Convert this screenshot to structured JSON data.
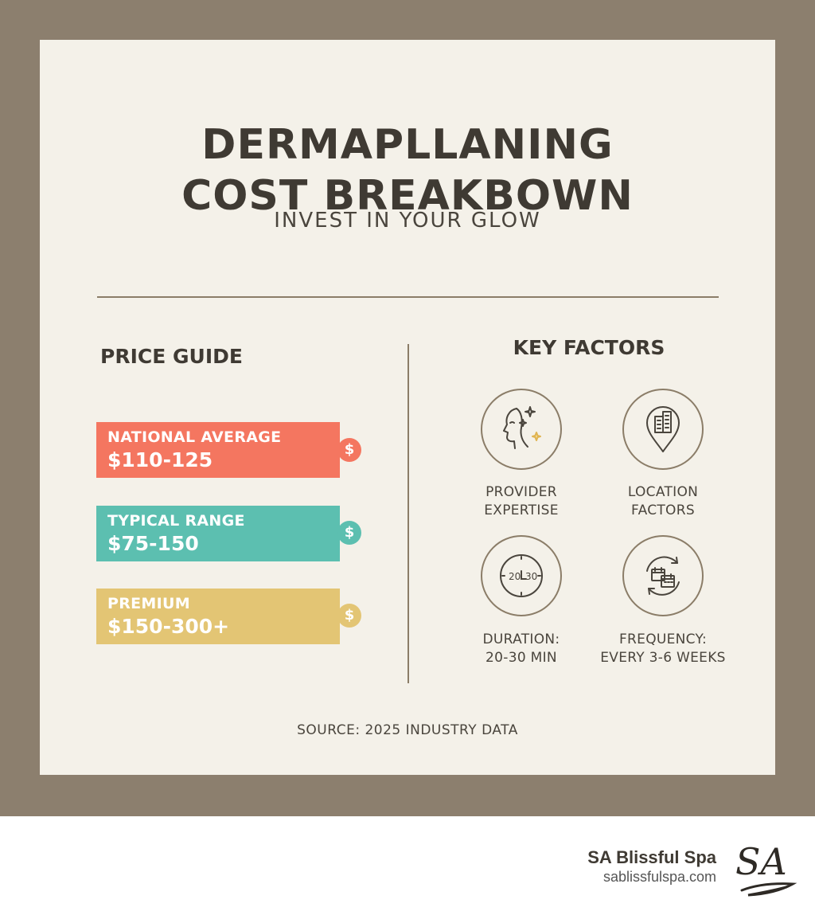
{
  "title_line1": "DERMAPLLANING",
  "title_line2": "COST BREAKBOWN",
  "subtitle": "INVEST IN YOUR GLOW",
  "price_guide": {
    "heading": "PRICE GUIDE",
    "tiers": [
      {
        "label": "NATIONAL AVERAGE",
        "value": "$110-125",
        "color": "#f47660"
      },
      {
        "label": "TYPICAL RANGE",
        "value": "$75-150",
        "color": "#5cbfb0"
      },
      {
        "label": "PREMIUM",
        "value": "$150-300+",
        "color": "#e3c574"
      }
    ],
    "badge_symbol": "$"
  },
  "key_factors": {
    "heading": "KEY FACTORS",
    "items": [
      {
        "icon": "face-sparkle-icon",
        "line1": "PROVIDER",
        "line2": "EXPERTISE"
      },
      {
        "icon": "location-pin-building-icon",
        "line1": "LOCATION",
        "line2": "FACTORS"
      },
      {
        "icon": "clock-icon",
        "icon_text": "20",
        "icon_text2": "30",
        "line1": "DURATION:",
        "line2": "20-30 MIN"
      },
      {
        "icon": "calendar-cycle-icon",
        "line1": "FREQUENCY:",
        "line2": "EVERY 3-6 WEEKS"
      }
    ]
  },
  "source": "SOURCE: 2025 INDUSTRY DATA",
  "brand": {
    "name": "SA Blissful Spa",
    "url": "sablissfulspa.com",
    "logo_text": "SA"
  }
}
